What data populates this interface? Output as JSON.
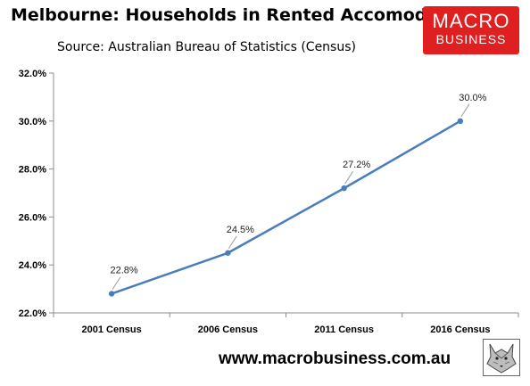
{
  "header": {
    "title": "Melbourne: Households in Rented Accomodation",
    "subtitle": "Source: Australian Bureau of Statistics (Census)"
  },
  "logo": {
    "line1": "MACRO",
    "line2": "BUSINESS",
    "color": "#e02020"
  },
  "footer": {
    "url": "www.macrobusiness.com.au",
    "mascot_icon": "wolf-icon"
  },
  "chart_data": {
    "type": "line",
    "categories": [
      "2001 Census",
      "2006 Census",
      "2011 Census",
      "2016 Census"
    ],
    "series": [
      {
        "values": [
          22.8,
          24.5,
          27.2,
          30.0
        ],
        "color": "#4a7ebb"
      }
    ],
    "data_labels": [
      "22.8%",
      "24.5%",
      "27.2%",
      "30.0%"
    ],
    "ylim": [
      22.0,
      32.0
    ],
    "yticks": [
      22.0,
      24.0,
      26.0,
      28.0,
      30.0,
      32.0
    ],
    "ytick_labels": [
      "22.0%",
      "24.0%",
      "26.0%",
      "28.0%",
      "30.0%",
      "32.0%"
    ],
    "grid": false,
    "legend": "none"
  }
}
